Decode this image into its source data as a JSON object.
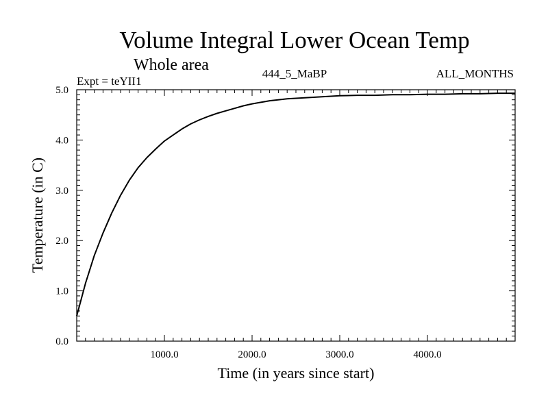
{
  "chart_data": {
    "type": "line",
    "title": "Volume Integral Lower Ocean Temp",
    "subtitle": "Whole area",
    "info_left": "Expt = teYII1",
    "info_center": "444_5_MaBP",
    "info_right": "ALL_MONTHS",
    "xlabel": "Time (in years since start)",
    "ylabel": "Temperature (in C)",
    "xlim": [
      0,
      5000
    ],
    "ylim": [
      0,
      5.0
    ],
    "x_ticks": [
      1000,
      2000,
      3000,
      4000
    ],
    "x_tick_labels": [
      "1000.0",
      "2000.0",
      "3000.0",
      "4000.0"
    ],
    "y_ticks": [
      0,
      1,
      2,
      3,
      4,
      5
    ],
    "y_tick_labels": [
      "0.0",
      "1.0",
      "2.0",
      "3.0",
      "4.0",
      "5.0"
    ],
    "grid": false,
    "line_color": "#000000",
    "series": [
      {
        "name": "Temperature",
        "x": [
          0,
          100,
          200,
          300,
          400,
          500,
          600,
          700,
          800,
          900,
          1000,
          1100,
          1200,
          1300,
          1400,
          1500,
          1600,
          1700,
          1800,
          1900,
          2000,
          2200,
          2400,
          2600,
          2800,
          3000,
          3200,
          3400,
          3600,
          3800,
          4000,
          4200,
          4400,
          4600,
          4800,
          5000
        ],
        "values": [
          0.5,
          1.15,
          1.7,
          2.15,
          2.55,
          2.9,
          3.2,
          3.45,
          3.65,
          3.82,
          3.98,
          4.1,
          4.22,
          4.32,
          4.4,
          4.47,
          4.53,
          4.58,
          4.63,
          4.68,
          4.72,
          4.78,
          4.82,
          4.84,
          4.86,
          4.88,
          4.89,
          4.89,
          4.9,
          4.9,
          4.91,
          4.91,
          4.92,
          4.92,
          4.93,
          4.93
        ]
      }
    ]
  }
}
